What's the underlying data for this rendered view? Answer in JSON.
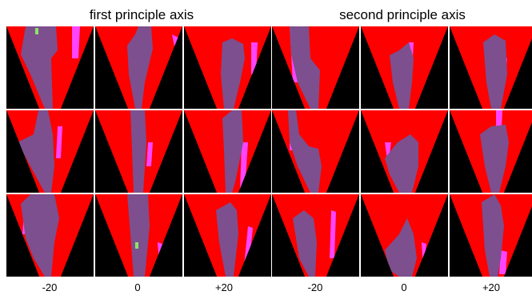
{
  "panels": [
    {
      "title": "first principle axis"
    },
    {
      "title": "second principle axis"
    }
  ],
  "xlabels": [
    "-20",
    "0",
    "+20"
  ],
  "colors": {
    "background": "#000000",
    "wedge": "#ff0000",
    "region": "#7d4f8e",
    "highlight": "#ff44ff",
    "green": "#8fe36a",
    "page": "#ffffff"
  }
}
